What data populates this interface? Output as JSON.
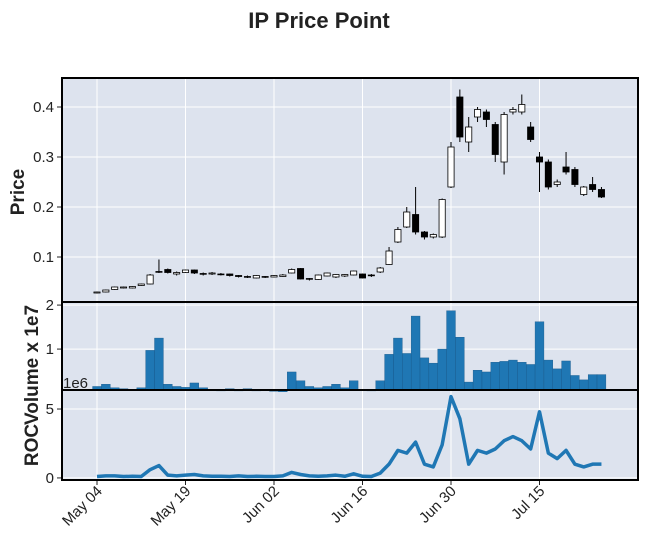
{
  "chart_data": {
    "type": "candlestick",
    "title": "IP Price Point",
    "categories": [
      "May 04",
      null,
      null,
      null,
      null,
      null,
      null,
      null,
      null,
      null,
      "May 19",
      null,
      null,
      null,
      null,
      null,
      null,
      null,
      null,
      null,
      "Jun 02",
      null,
      null,
      null,
      null,
      null,
      null,
      null,
      null,
      null,
      "Jun 16",
      null,
      null,
      null,
      null,
      null,
      null,
      null,
      null,
      null,
      "Jun 30",
      null,
      null,
      null,
      null,
      null,
      null,
      null,
      null,
      null,
      "Jul 15",
      null,
      null,
      null,
      null,
      null,
      null,
      null
    ],
    "open": [
      0.028,
      0.03,
      0.035,
      0.038,
      0.038,
      0.043,
      0.046,
      0.07,
      0.075,
      0.066,
      0.069,
      0.074,
      0.066,
      0.066,
      0.065,
      0.066,
      0.063,
      0.06,
      0.058,
      0.06,
      0.06,
      0.061,
      0.068,
      0.077,
      0.056,
      0.055,
      0.062,
      0.06,
      0.062,
      0.064,
      0.066,
      0.063,
      0.07,
      0.085,
      0.13,
      0.16,
      0.185,
      0.15,
      0.14,
      0.14,
      0.24,
      0.42,
      0.33,
      0.38,
      0.39,
      0.365,
      0.29,
      0.39,
      0.39,
      0.36,
      0.3,
      0.29,
      0.245,
      0.28,
      0.275,
      0.225,
      0.245,
      0.235
    ],
    "high": [
      0.031,
      0.035,
      0.041,
      0.041,
      0.042,
      0.047,
      0.066,
      0.095,
      0.077,
      0.071,
      0.075,
      0.075,
      0.069,
      0.07,
      0.068,
      0.067,
      0.064,
      0.063,
      0.064,
      0.062,
      0.064,
      0.066,
      0.077,
      0.078,
      0.058,
      0.065,
      0.069,
      0.066,
      0.066,
      0.073,
      0.067,
      0.066,
      0.08,
      0.12,
      0.16,
      0.2,
      0.24,
      0.152,
      0.147,
      0.217,
      0.33,
      0.435,
      0.38,
      0.4,
      0.395,
      0.37,
      0.39,
      0.4,
      0.425,
      0.37,
      0.31,
      0.295,
      0.255,
      0.31,
      0.28,
      0.242,
      0.26,
      0.24
    ],
    "low": [
      0.027,
      0.029,
      0.034,
      0.037,
      0.037,
      0.042,
      0.045,
      0.068,
      0.067,
      0.063,
      0.068,
      0.066,
      0.063,
      0.064,
      0.063,
      0.061,
      0.059,
      0.058,
      0.057,
      0.058,
      0.059,
      0.06,
      0.067,
      0.055,
      0.053,
      0.054,
      0.061,
      0.058,
      0.06,
      0.063,
      0.057,
      0.06,
      0.068,
      0.084,
      0.128,
      0.158,
      0.145,
      0.135,
      0.137,
      0.138,
      0.238,
      0.33,
      0.31,
      0.37,
      0.36,
      0.29,
      0.265,
      0.385,
      0.385,
      0.33,
      0.23,
      0.235,
      0.24,
      0.265,
      0.24,
      0.222,
      0.23,
      0.218
    ],
    "close": [
      0.03,
      0.034,
      0.04,
      0.04,
      0.041,
      0.046,
      0.064,
      0.071,
      0.069,
      0.069,
      0.074,
      0.068,
      0.067,
      0.068,
      0.066,
      0.063,
      0.061,
      0.061,
      0.063,
      0.061,
      0.063,
      0.064,
      0.075,
      0.056,
      0.057,
      0.064,
      0.068,
      0.065,
      0.065,
      0.072,
      0.058,
      0.064,
      0.078,
      0.112,
      0.155,
      0.19,
      0.15,
      0.14,
      0.145,
      0.215,
      0.32,
      0.34,
      0.36,
      0.395,
      0.375,
      0.305,
      0.385,
      0.395,
      0.405,
      0.335,
      0.29,
      0.24,
      0.25,
      0.27,
      0.245,
      0.24,
      0.235,
      0.22
    ],
    "ylabel": "Price",
    "ylim": [
      0.01,
      0.458
    ],
    "yticks": [
      0.1,
      0.2,
      0.3,
      0.4
    ],
    "up_color": "#ffffff",
    "down_color": "#000000",
    "edge_color": "#000000",
    "background": "#dde3ee",
    "grid": true,
    "volume": {
      "ylabel": "Volume x 1e7",
      "offset_label": "1e6",
      "color": "#1f77b4",
      "ylim": [
        0.07,
        2.07
      ],
      "yticks": [
        1,
        2
      ],
      "values": [
        0.15,
        0.2,
        0.12,
        0.1,
        0.08,
        0.12,
        0.97,
        1.25,
        0.2,
        0.15,
        0.13,
        0.23,
        0.12,
        0.08,
        0.05,
        0.1,
        0.05,
        0.1,
        0.05,
        0.07,
        0.04,
        0.03,
        0.48,
        0.28,
        0.15,
        0.12,
        0.15,
        0.2,
        0.12,
        0.28,
        0.07,
        0.05,
        0.28,
        0.88,
        1.25,
        0.9,
        1.75,
        0.8,
        0.68,
        1.0,
        1.87,
        1.27,
        0.25,
        0.52,
        0.48,
        0.7,
        0.72,
        0.75,
        0.7,
        0.65,
        1.62,
        0.75,
        0.55,
        0.73,
        0.4,
        0.3,
        0.42,
        0.42
      ]
    },
    "roc": {
      "ylabel": "ROC",
      "color": "#1f77b4",
      "ylim": [
        -0.15,
        6.38
      ],
      "yticks": [
        0,
        5
      ],
      "values": [
        0.1,
        0.15,
        0.15,
        0.1,
        0.12,
        0.1,
        0.6,
        0.9,
        0.2,
        0.15,
        0.2,
        0.25,
        0.15,
        0.12,
        0.12,
        0.1,
        0.15,
        0.1,
        0.12,
        0.1,
        0.1,
        0.15,
        0.4,
        0.25,
        0.15,
        0.12,
        0.15,
        0.2,
        0.12,
        0.3,
        0.12,
        0.1,
        0.35,
        1.0,
        2.0,
        1.8,
        2.6,
        1.0,
        0.8,
        2.4,
        5.9,
        4.3,
        1.0,
        2.0,
        1.8,
        2.1,
        2.7,
        3.0,
        2.7,
        2.1,
        4.8,
        1.8,
        1.4,
        2.0,
        1.0,
        0.8,
        1.0,
        1.0
      ]
    }
  }
}
